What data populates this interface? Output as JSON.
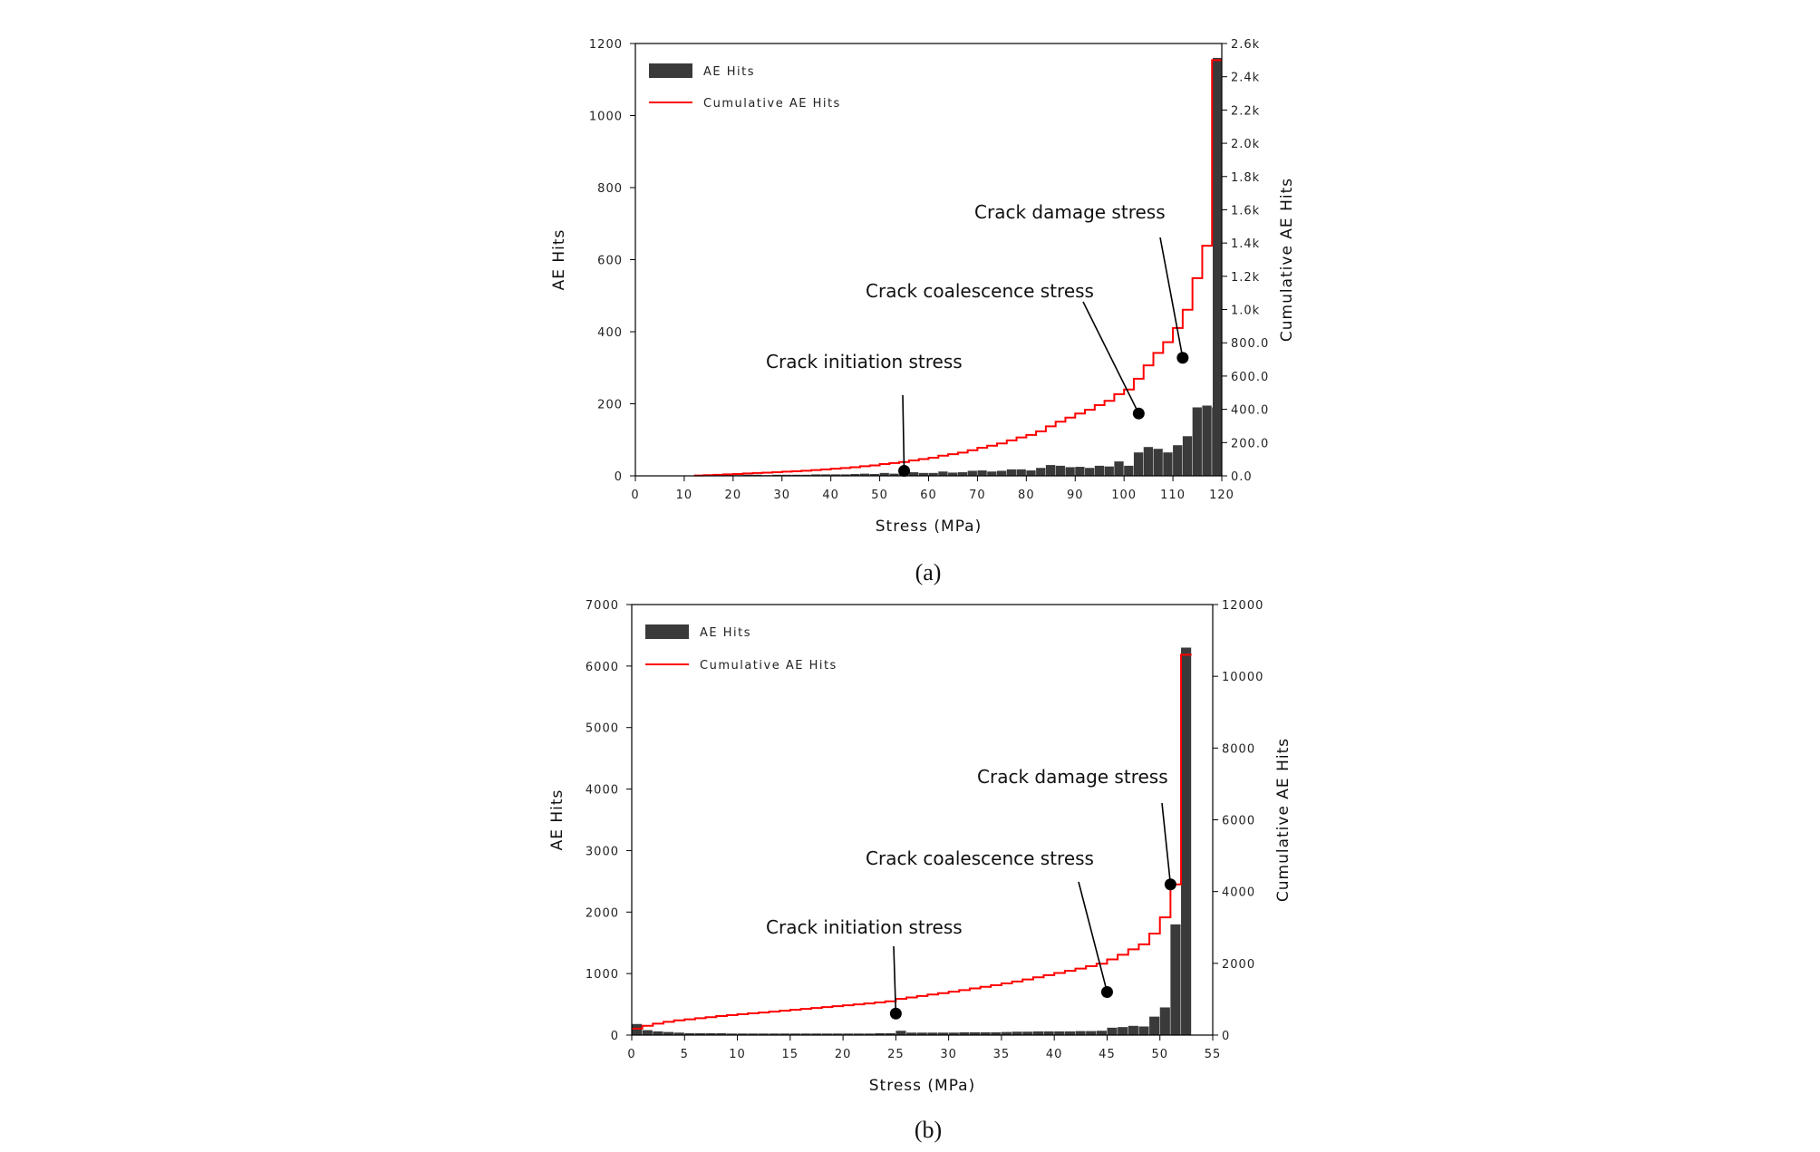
{
  "chart_data": [
    {
      "type": "bar",
      "panel": "a",
      "caption": "(a)",
      "xlabel": "Stress (MPa)",
      "ylabel": "AE Hits",
      "y2label": "Cumulative AE Hits",
      "xlim": [
        0,
        120
      ],
      "ylim": [
        0,
        1200
      ],
      "y2lim": [
        0,
        2600
      ],
      "xticks": [
        0,
        10,
        20,
        30,
        40,
        50,
        60,
        70,
        80,
        90,
        100,
        110,
        120
      ],
      "yticks": [
        0,
        200,
        400,
        600,
        800,
        1000,
        1200
      ],
      "y2ticks": [
        "0.0",
        "200.0",
        "400.0",
        "600.0",
        "800.0",
        "1.0k",
        "1.2k",
        "1.4k",
        "1.6k",
        "1.8k",
        "2.0k",
        "2.2k",
        "2.4k",
        "2.6k"
      ],
      "y2tickvalues": [
        0,
        200,
        400,
        600,
        800,
        1000,
        1200,
        1400,
        1600,
        1800,
        2000,
        2200,
        2400,
        2600
      ],
      "legend": {
        "placement": "top-left",
        "bars": "AE Hits",
        "line": "Cumulative AE Hits"
      },
      "colors": {
        "bars": "#3a3a3a",
        "line": "#ff0000"
      },
      "bin_width": 2,
      "bars": {
        "x": [
          12,
          14,
          16,
          18,
          20,
          22,
          24,
          26,
          28,
          30,
          32,
          34,
          36,
          38,
          40,
          42,
          44,
          46,
          48,
          50,
          52,
          54,
          56,
          58,
          60,
          62,
          64,
          66,
          68,
          70,
          72,
          74,
          76,
          78,
          80,
          82,
          84,
          86,
          88,
          90,
          92,
          94,
          96,
          98,
          100,
          102,
          104,
          106,
          108,
          110,
          112,
          114,
          116,
          118
        ],
        "values": [
          2,
          2,
          2,
          3,
          2,
          3,
          3,
          2,
          3,
          3,
          3,
          3,
          4,
          4,
          4,
          4,
          5,
          6,
          5,
          8,
          6,
          6,
          10,
          8,
          8,
          12,
          9,
          10,
          14,
          15,
          12,
          14,
          18,
          18,
          15,
          22,
          30,
          28,
          24,
          25,
          22,
          28,
          26,
          40,
          28,
          65,
          80,
          75,
          65,
          85,
          110,
          190,
          195,
          190
        ]
      },
      "extra_bar": {
        "x": 120,
        "value": 1160
      },
      "cumulative": {
        "x": [
          12,
          14,
          16,
          18,
          20,
          22,
          24,
          26,
          28,
          30,
          32,
          34,
          36,
          38,
          40,
          42,
          44,
          46,
          48,
          50,
          52,
          54,
          56,
          58,
          60,
          62,
          64,
          66,
          68,
          70,
          72,
          74,
          76,
          78,
          80,
          82,
          84,
          86,
          88,
          90,
          92,
          94,
          96,
          98,
          100,
          102,
          104,
          106,
          108,
          110,
          112,
          114,
          116,
          118,
          120
        ],
        "values": [
          2,
          4,
          6,
          9,
          11,
          14,
          17,
          19,
          22,
          25,
          28,
          31,
          35,
          39,
          43,
          47,
          52,
          58,
          63,
          71,
          77,
          83,
          93,
          101,
          109,
          121,
          130,
          140,
          154,
          169,
          181,
          195,
          213,
          231,
          246,
          268,
          298,
          326,
          350,
          375,
          397,
          425,
          451,
          491,
          519,
          584,
          664,
          739,
          804,
          889,
          999,
          1189,
          1384,
          2500,
          2500
        ]
      },
      "annotations": [
        {
          "label": "Crack initiation stress",
          "x": 55,
          "cum": 30
        },
        {
          "label": "Crack coalescence stress",
          "x": 103,
          "cum": 375
        },
        {
          "label": "Crack damage stress",
          "x": 112,
          "cum": 710
        }
      ]
    },
    {
      "type": "bar",
      "panel": "b",
      "caption": "(b)",
      "xlabel": "Stress (MPa)",
      "ylabel": "AE Hits",
      "y2label": "Cumulative AE Hits",
      "xlim": [
        0,
        55
      ],
      "ylim": [
        0,
        7000
      ],
      "y2lim": [
        0,
        12000
      ],
      "xticks": [
        0,
        5,
        10,
        15,
        20,
        25,
        30,
        35,
        40,
        45,
        50,
        55
      ],
      "yticks": [
        0,
        1000,
        2000,
        3000,
        4000,
        5000,
        6000,
        7000
      ],
      "y2ticks": [
        "0",
        "2000",
        "4000",
        "6000",
        "8000",
        "10000",
        "12000"
      ],
      "y2tickvalues": [
        0,
        2000,
        4000,
        6000,
        8000,
        10000,
        12000
      ],
      "legend": {
        "placement": "top-left",
        "bars": "AE Hits",
        "line": "Cumulative AE Hits"
      },
      "colors": {
        "bars": "#3a3a3a",
        "line": "#ff0000"
      },
      "bin_width": 1,
      "bars": {
        "x": [
          0,
          1,
          2,
          3,
          4,
          5,
          6,
          7,
          8,
          9,
          10,
          11,
          12,
          13,
          14,
          15,
          16,
          17,
          18,
          19,
          20,
          21,
          22,
          23,
          24,
          25,
          26,
          27,
          28,
          29,
          30,
          31,
          32,
          33,
          34,
          35,
          36,
          37,
          38,
          39,
          40,
          41,
          42,
          43,
          44,
          45,
          46,
          47,
          48,
          49,
          50,
          51,
          52
        ],
        "values": [
          180,
          80,
          60,
          50,
          40,
          30,
          30,
          30,
          30,
          25,
          25,
          25,
          25,
          25,
          25,
          25,
          25,
          25,
          25,
          25,
          25,
          25,
          25,
          30,
          30,
          70,
          40,
          40,
          40,
          40,
          40,
          45,
          45,
          45,
          45,
          50,
          55,
          55,
          60,
          60,
          60,
          60,
          65,
          65,
          70,
          120,
          130,
          150,
          140,
          300,
          450,
          1800,
          6300
        ]
      },
      "cumulative": {
        "x": [
          0,
          1,
          2,
          3,
          4,
          5,
          6,
          7,
          8,
          9,
          10,
          11,
          12,
          13,
          14,
          15,
          16,
          17,
          18,
          19,
          20,
          21,
          22,
          23,
          24,
          25,
          26,
          27,
          28,
          29,
          30,
          31,
          32,
          33,
          34,
          35,
          36,
          37,
          38,
          39,
          40,
          41,
          42,
          43,
          44,
          45,
          46,
          47,
          48,
          49,
          50,
          51,
          52,
          53
        ],
        "values": [
          180,
          260,
          320,
          370,
          410,
          440,
          470,
          500,
          530,
          555,
          580,
          605,
          630,
          655,
          680,
          705,
          730,
          755,
          780,
          805,
          830,
          855,
          880,
          910,
          940,
          1010,
          1050,
          1090,
          1130,
          1170,
          1210,
          1255,
          1300,
          1345,
          1390,
          1440,
          1495,
          1550,
          1610,
          1670,
          1730,
          1790,
          1855,
          1920,
          1990,
          2110,
          2240,
          2390,
          2530,
          2830,
          3280,
          4200,
          10600,
          10600
        ]
      },
      "annotations": [
        {
          "label": "Crack initiation stress",
          "x": 25,
          "cum": 600
        },
        {
          "label": "Crack coalescence stress",
          "x": 45,
          "cum": 1200
        },
        {
          "label": "Crack damage stress",
          "x": 51,
          "cum": 4200
        }
      ]
    }
  ]
}
